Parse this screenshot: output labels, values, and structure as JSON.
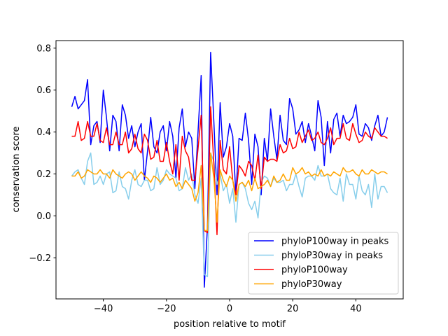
{
  "chart_data": {
    "type": "line",
    "title": "",
    "xlabel": "position relative to motif",
    "ylabel": "conservation score",
    "xlim": [
      -55,
      55
    ],
    "ylim": [
      -0.396,
      0.836
    ],
    "xticks": [
      -40,
      -20,
      0,
      20,
      40
    ],
    "xtick_labels": [
      "−40",
      "−20",
      "0",
      "20",
      "40"
    ],
    "yticks": [
      -0.2,
      0.0,
      0.2,
      0.4,
      0.6,
      0.8
    ],
    "ytick_labels": [
      "−0.2",
      "0.0",
      "0.2",
      "0.4",
      "0.6",
      "0.8"
    ],
    "grid": false,
    "legend_position": "lower-right",
    "x_start": -50,
    "x_end": 50,
    "series": [
      {
        "name": "phyloP100way in peaks",
        "color": "#0000ff",
        "values": [
          0.52,
          0.57,
          0.51,
          0.53,
          0.55,
          0.65,
          0.34,
          0.43,
          0.45,
          0.35,
          0.6,
          0.47,
          0.31,
          0.48,
          0.45,
          0.31,
          0.53,
          0.48,
          0.37,
          0.43,
          0.33,
          0.4,
          0.44,
          0.17,
          0.31,
          0.47,
          0.33,
          0.3,
          0.4,
          0.43,
          0.31,
          0.45,
          0.38,
          0.18,
          0.42,
          0.51,
          0.33,
          0.4,
          0.37,
          0.13,
          0.4,
          0.67,
          -0.34,
          -0.05,
          0.78,
          0.45,
          0.1,
          0.54,
          0.28,
          0.33,
          0.44,
          0.38,
          0.1,
          0.37,
          0.36,
          0.49,
          0.36,
          0.15,
          0.39,
          0.33,
          0.1,
          0.37,
          0.26,
          0.51,
          0.38,
          0.27,
          0.48,
          0.36,
          0.34,
          0.56,
          0.51,
          0.39,
          0.41,
          0.45,
          0.35,
          0.44,
          0.38,
          0.31,
          0.55,
          0.47,
          0.24,
          0.45,
          0.3,
          0.46,
          0.49,
          0.38,
          0.48,
          0.44,
          0.45,
          0.47,
          0.53,
          0.39,
          0.38,
          0.44,
          0.42,
          0.36,
          0.43,
          0.48,
          0.38,
          0.4,
          0.47
        ]
      },
      {
        "name": "phyloP30way in peaks",
        "color": "#87ceeb",
        "values": [
          0.19,
          0.21,
          0.22,
          0.18,
          0.15,
          0.26,
          0.3,
          0.15,
          0.16,
          0.19,
          0.15,
          0.2,
          0.21,
          0.11,
          0.12,
          0.21,
          0.14,
          0.13,
          0.08,
          0.17,
          0.22,
          0.15,
          0.14,
          0.17,
          0.17,
          0.12,
          0.13,
          0.23,
          0.15,
          0.17,
          0.22,
          0.2,
          0.19,
          0.18,
          0.12,
          0.13,
          0.23,
          0.17,
          0.2,
          0.1,
          0.06,
          0.18,
          -0.28,
          -0.29,
          0.3,
          0.26,
          0.15,
          0.2,
          0.12,
          0.15,
          0.06,
          0.13,
          -0.03,
          0.15,
          0.16,
          0.13,
          0.06,
          0.03,
          0.07,
          -0.01,
          0.16,
          0.19,
          0.18,
          0.14,
          0.18,
          0.16,
          0.16,
          0.17,
          0.12,
          0.15,
          0.15,
          0.2,
          0.14,
          0.09,
          0.18,
          0.19,
          0.19,
          0.17,
          0.24,
          0.19,
          0.19,
          0.2,
          0.13,
          0.11,
          0.1,
          0.18,
          0.07,
          0.2,
          0.15,
          0.15,
          0.08,
          0.19,
          0.12,
          0.1,
          0.15,
          0.04,
          0.2,
          0.08,
          0.14,
          0.14,
          0.11
        ]
      },
      {
        "name": "phyloP100way",
        "color": "#ff0000",
        "values": [
          0.38,
          0.38,
          0.45,
          0.36,
          0.37,
          0.45,
          0.38,
          0.38,
          0.44,
          0.36,
          0.35,
          0.42,
          0.34,
          0.34,
          0.4,
          0.34,
          0.34,
          0.4,
          0.3,
          0.32,
          0.39,
          0.32,
          0.3,
          0.39,
          0.36,
          0.27,
          0.28,
          0.36,
          0.26,
          0.26,
          0.35,
          0.26,
          0.2,
          0.34,
          0.17,
          0.38,
          0.31,
          0.28,
          0.17,
          0.17,
          0.32,
          0.48,
          -0.07,
          -0.08,
          0.52,
          0.25,
          -0.09,
          0.36,
          0.22,
          0.2,
          0.33,
          0.17,
          0.1,
          0.24,
          0.22,
          0.19,
          0.26,
          0.24,
          0.17,
          0.29,
          0.13,
          0.28,
          0.26,
          0.27,
          0.27,
          0.26,
          0.34,
          0.3,
          0.31,
          0.37,
          0.32,
          0.33,
          0.4,
          0.35,
          0.38,
          0.41,
          0.36,
          0.37,
          0.4,
          0.35,
          0.34,
          0.37,
          0.42,
          0.34,
          0.37,
          0.37,
          0.44,
          0.37,
          0.36,
          0.44,
          0.39,
          0.35,
          0.36,
          0.4,
          0.38,
          0.37,
          0.42,
          0.4,
          0.38,
          0.38,
          0.37
        ]
      },
      {
        "name": "phyloP30way",
        "color": "#ffa500",
        "values": [
          0.19,
          0.19,
          0.21,
          0.18,
          0.19,
          0.22,
          0.21,
          0.2,
          0.2,
          0.22,
          0.2,
          0.2,
          0.18,
          0.22,
          0.2,
          0.19,
          0.18,
          0.2,
          0.21,
          0.2,
          0.17,
          0.19,
          0.21,
          0.19,
          0.18,
          0.16,
          0.19,
          0.18,
          0.16,
          0.18,
          0.2,
          0.17,
          0.18,
          0.14,
          0.16,
          0.13,
          0.17,
          0.15,
          0.13,
          0.07,
          0.11,
          0.24,
          -0.07,
          -0.07,
          0.3,
          0.18,
          -0.03,
          0.22,
          0.17,
          0.14,
          0.19,
          0.17,
          0.07,
          0.15,
          0.16,
          0.14,
          0.17,
          0.12,
          0.18,
          0.13,
          0.14,
          0.15,
          0.17,
          0.14,
          0.19,
          0.16,
          0.17,
          0.2,
          0.17,
          0.17,
          0.23,
          0.2,
          0.21,
          0.23,
          0.2,
          0.21,
          0.19,
          0.2,
          0.19,
          0.22,
          0.19,
          0.2,
          0.19,
          0.21,
          0.2,
          0.19,
          0.23,
          0.21,
          0.21,
          0.22,
          0.2,
          0.19,
          0.22,
          0.2,
          0.2,
          0.22,
          0.21,
          0.2,
          0.21,
          0.21,
          0.2
        ]
      }
    ]
  }
}
